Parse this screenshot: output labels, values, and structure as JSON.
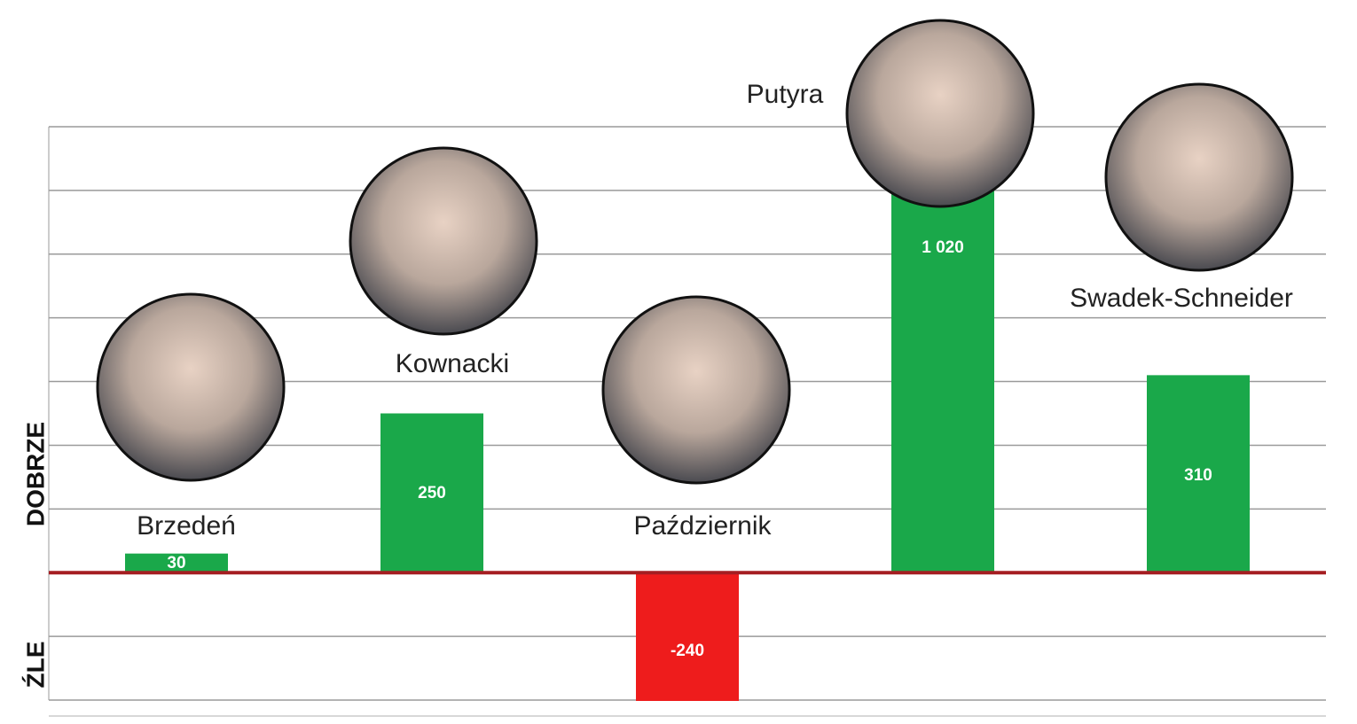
{
  "chart_data": {
    "type": "bar",
    "categories": [
      "Brzedeń",
      "Kownacki",
      "Październik",
      "Putyra",
      "Swadek-Schneider"
    ],
    "values": [
      30,
      250,
      -240,
      1020,
      310
    ],
    "value_labels": [
      "30",
      "250",
      "-240",
      "1 020",
      "310"
    ],
    "colors": [
      "#1aa84a",
      "#1aa84a",
      "#ee1c1c",
      "#1aa84a",
      "#1aa84a"
    ],
    "ylabel_positive": "DOBRZE",
    "ylabel_negative": "ŹLE",
    "ylim": [
      -200,
      700
    ],
    "yticks": [
      -200,
      -100,
      0,
      100,
      200,
      300,
      400,
      500,
      600,
      700
    ],
    "grid": true
  }
}
